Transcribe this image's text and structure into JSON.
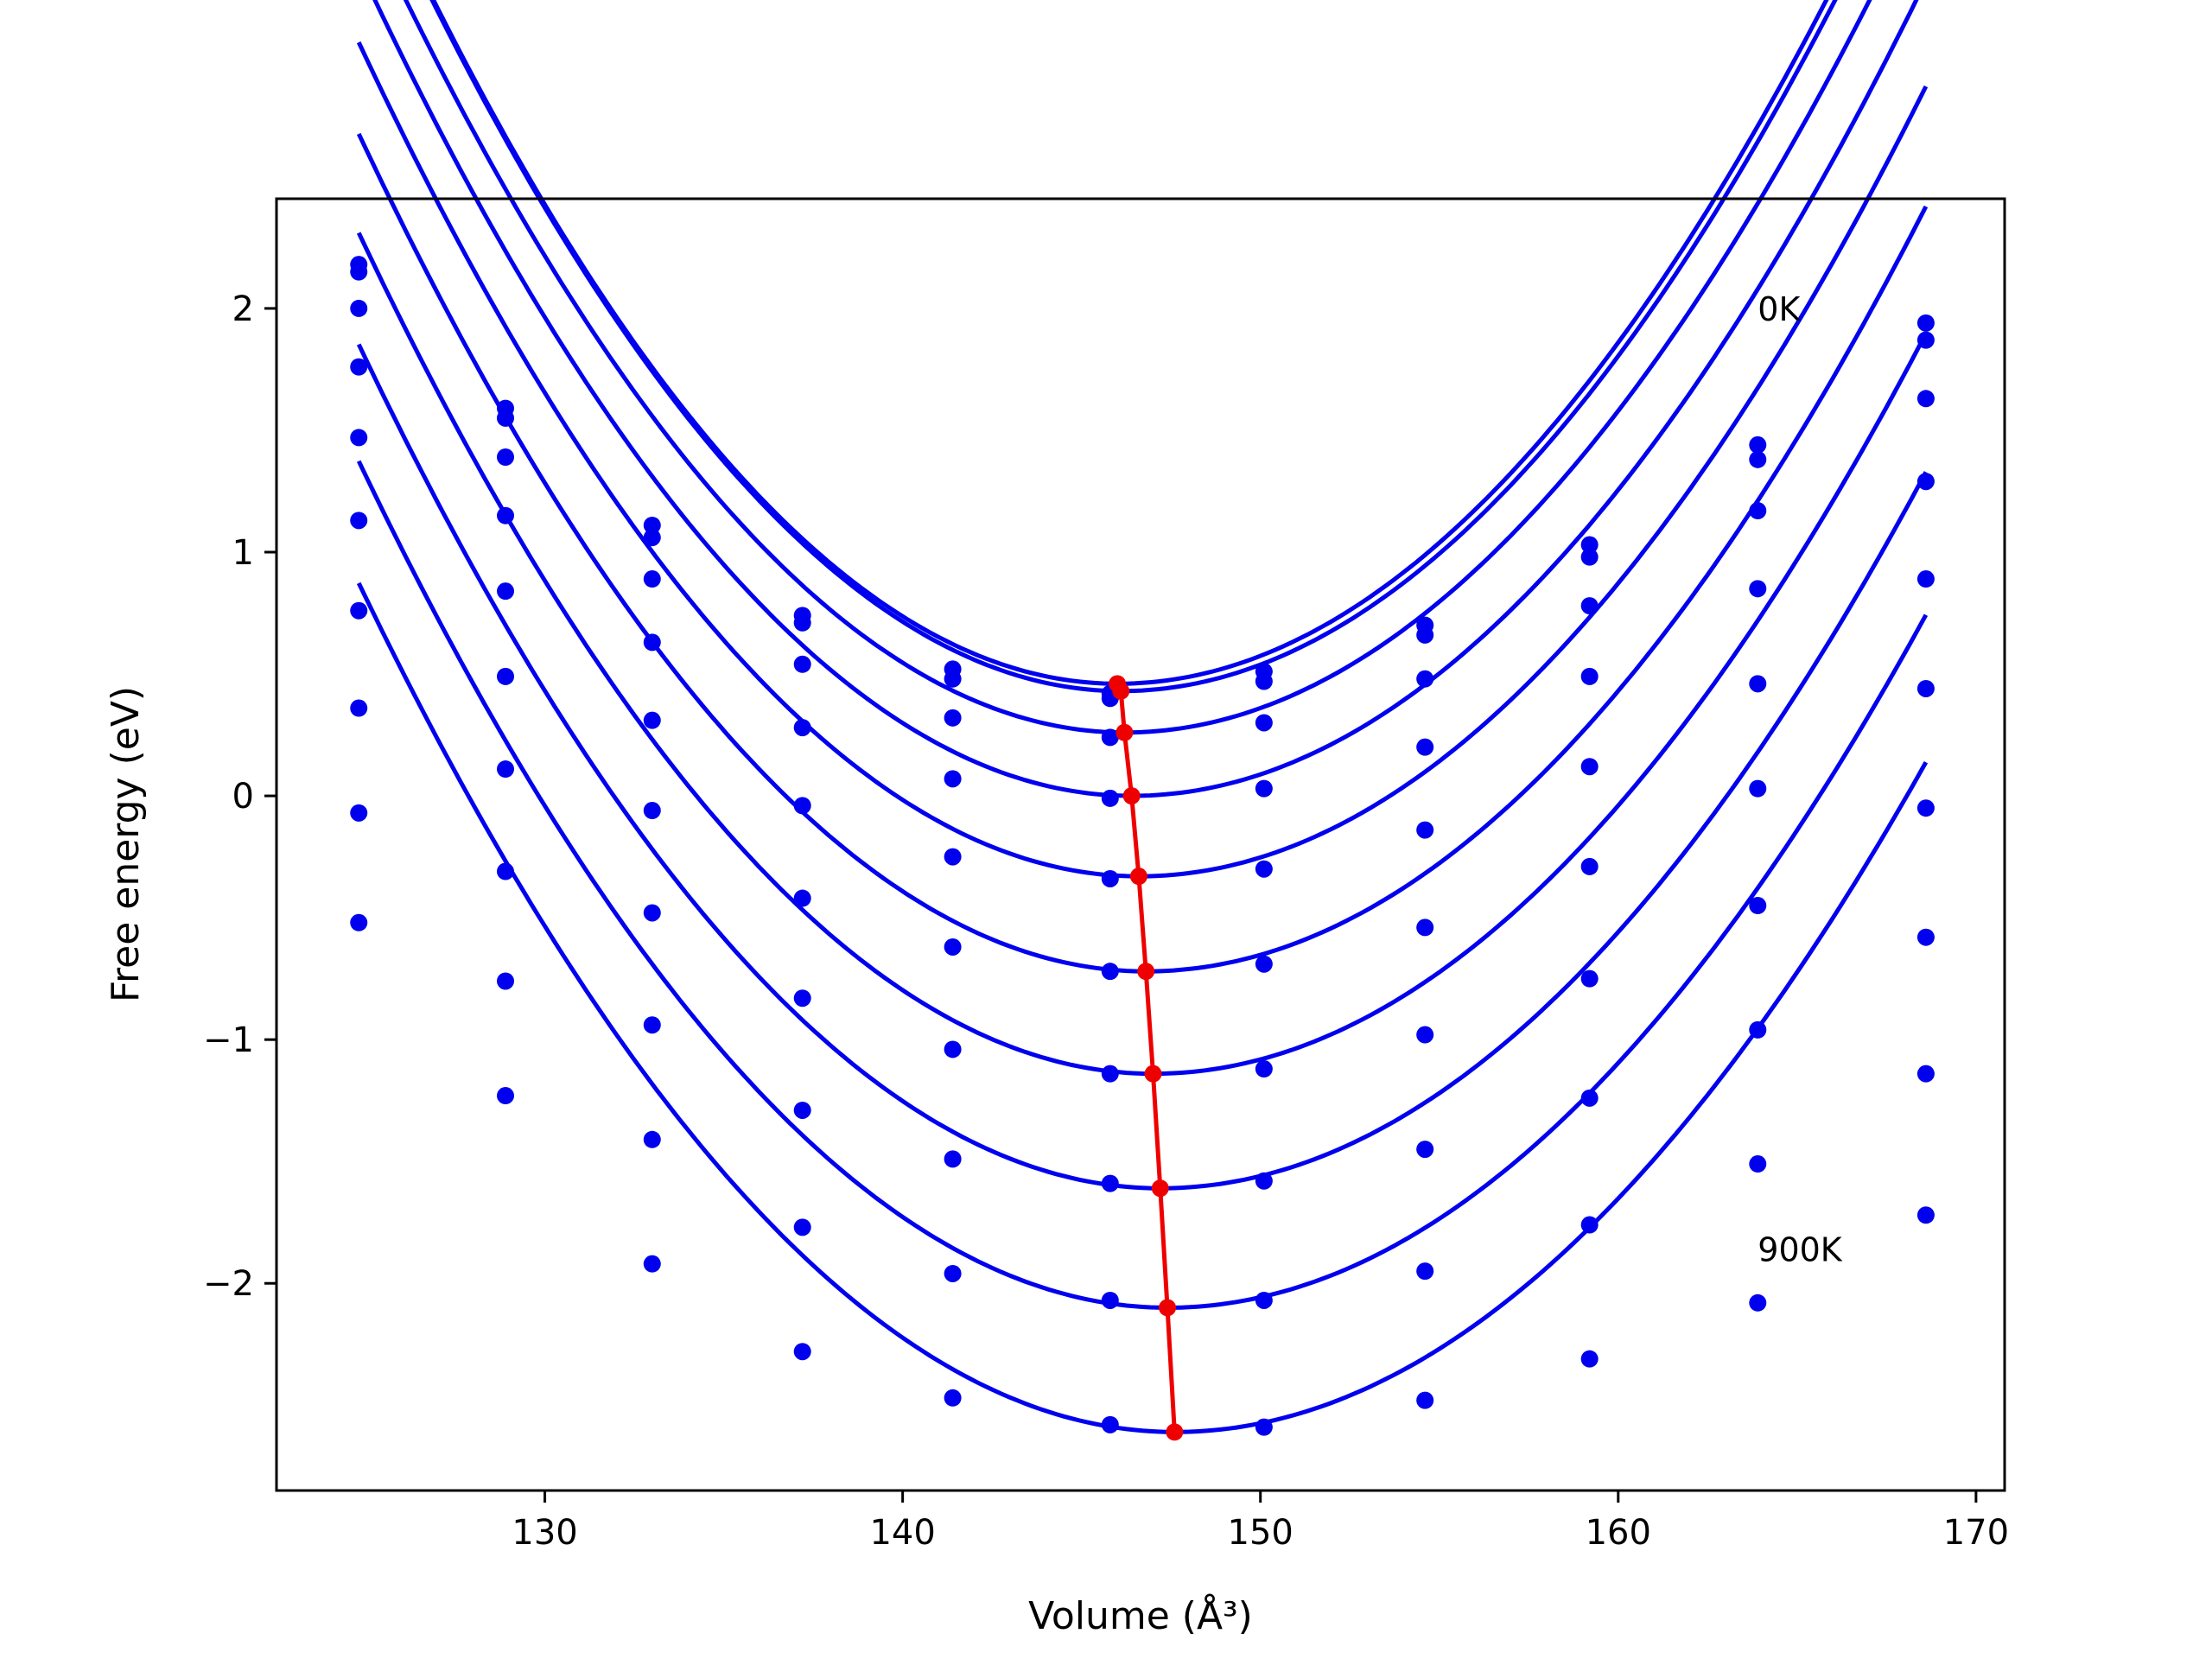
{
  "chart_data": {
    "type": "line",
    "xlabel": "Volume (Å³)",
    "ylabel": "Free energy (eV)",
    "xlim": [
      122.5,
      170.8
    ],
    "ylim": [
      -2.85,
      2.45
    ],
    "x_ticks": [
      130,
      140,
      150,
      160,
      170
    ],
    "x_tick_labels": [
      "130",
      "140",
      "150",
      "160",
      "170"
    ],
    "y_ticks": [
      -2,
      -1,
      0,
      1,
      2
    ],
    "y_tick_labels": [
      "−2",
      "−1",
      "0",
      "1",
      "2"
    ],
    "grid": false,
    "annotations": [
      {
        "text": "0K",
        "x": 163.9,
        "y": 2.0
      },
      {
        "text": "900K",
        "x": 163.9,
        "y": -1.86
      }
    ],
    "x": [
      124.8,
      128.9,
      133.0,
      137.2,
      141.4,
      145.8,
      150.1,
      154.6,
      159.2,
      163.9,
      168.6
    ],
    "series": [
      {
        "color": "#0000ee",
        "y": [
          2.18,
          1.59,
          1.11,
          0.74,
          0.52,
          0.42,
          0.51,
          0.7,
          1.03,
          1.44,
          1.94
        ],
        "fit": {
          "vmin": 146.0,
          "emin": 0.46,
          "k": 0.00768
        }
      },
      {
        "color": "#0000ee",
        "y": [
          2.15,
          1.55,
          1.06,
          0.71,
          0.48,
          0.4,
          0.47,
          0.66,
          0.98,
          1.38,
          1.87
        ],
        "fit": {
          "vmin": 146.1,
          "emin": 0.43,
          "k": 0.00765
        }
      },
      {
        "color": "#0000ee",
        "y": [
          2.0,
          1.39,
          0.89,
          0.54,
          0.32,
          0.24,
          0.3,
          0.48,
          0.78,
          1.17,
          1.63
        ],
        "fit": {
          "vmin": 146.2,
          "emin": 0.26,
          "k": 0.00745
        }
      },
      {
        "color": "#0000ee",
        "y": [
          1.76,
          1.15,
          0.63,
          0.28,
          0.07,
          -0.01,
          0.03,
          0.2,
          0.49,
          0.85,
          1.29
        ],
        "fit": {
          "vmin": 146.4,
          "emin": 0.0,
          "k": 0.0073
        }
      },
      {
        "color": "#0000ee",
        "y": [
          1.47,
          0.84,
          0.31,
          -0.04,
          -0.25,
          -0.34,
          -0.3,
          -0.14,
          0.12,
          0.46,
          0.89
        ],
        "fit": {
          "vmin": 146.6,
          "emin": -0.33,
          "k": 0.0072
        }
      },
      {
        "color": "#0000ee",
        "y": [
          1.13,
          0.49,
          -0.06,
          -0.42,
          -0.62,
          -0.72,
          -0.69,
          -0.54,
          -0.29,
          0.03,
          0.44
        ],
        "fit": {
          "vmin": 146.8,
          "emin": -0.72,
          "k": 0.0071
        }
      },
      {
        "color": "#0000ee",
        "y": [
          0.76,
          0.11,
          -0.48,
          -0.83,
          -1.04,
          -1.14,
          -1.12,
          -0.98,
          -0.75,
          -0.45,
          -0.05
        ],
        "fit": {
          "vmin": 147.0,
          "emin": -1.14,
          "k": 0.007
        }
      },
      {
        "color": "#0000ee",
        "y": [
          0.36,
          -0.31,
          -0.94,
          -1.29,
          -1.49,
          -1.59,
          -1.58,
          -1.45,
          -1.24,
          -0.96,
          -0.58
        ],
        "fit": {
          "vmin": 147.2,
          "emin": -1.61,
          "k": 0.0069
        }
      },
      {
        "color": "#0000ee",
        "y": [
          -0.07,
          -0.76,
          -1.41,
          -1.77,
          -1.96,
          -2.07,
          -2.07,
          -1.95,
          -1.76,
          -1.51,
          -1.14
        ],
        "fit": {
          "vmin": 147.4,
          "emin": -2.1,
          "k": 0.0068
        }
      },
      {
        "color": "#0000ee",
        "y": [
          -0.52,
          -1.23,
          -1.92,
          -2.28,
          -2.47,
          -2.58,
          -2.59,
          -2.48,
          -2.31,
          -2.08,
          -1.72
        ],
        "fit": {
          "vmin": 147.6,
          "emin": -2.61,
          "k": 0.0067
        }
      }
    ],
    "minimum_line": {
      "color": "#ee0000",
      "x": [
        146.0,
        146.1,
        146.2,
        146.4,
        146.6,
        146.8,
        147.0,
        147.2,
        147.4,
        147.6
      ],
      "y": [
        0.46,
        0.43,
        0.26,
        0.0,
        -0.33,
        -0.72,
        -1.14,
        -1.61,
        -2.1,
        -2.61
      ]
    }
  }
}
